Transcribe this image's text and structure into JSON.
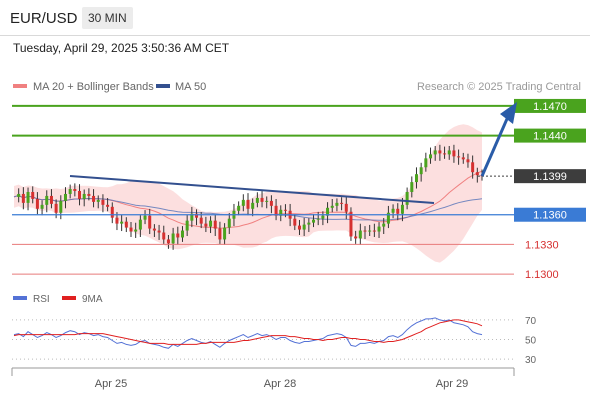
{
  "header": {
    "symbol": "EUR/USD",
    "timeframe": "30 MIN"
  },
  "timestamp": "Tuesday, April 29, 2025 3:50:36 AM CET",
  "legend": {
    "ma20_label": "MA 20 + Bollinger Bands",
    "ma50_label": "MA 50",
    "credit": "Research © 2025 Trading Central"
  },
  "rsi_legend": {
    "rsi_label": "RSI",
    "ma9_label": "9MA"
  },
  "colors": {
    "target": "#4aa31e",
    "current": "#3d3d3d",
    "pivot": "#3a7bd5",
    "support": "#e87a7a",
    "trendline": "#33508f",
    "bollinger": "#fbd4d4",
    "ma20": "#f08080",
    "ma50": "#5472b8",
    "rsi": "#5472d6",
    "rsi_ma": "#e02020",
    "arrow": "#2a5ca8"
  },
  "chart_data": [
    {
      "type": "candlestick",
      "levels": [
        {
          "label": "1.1470",
          "value": 1.147,
          "kind": "target"
        },
        {
          "label": "1.1440",
          "value": 1.144,
          "kind": "target"
        },
        {
          "label": "1.1399",
          "value": 1.1399,
          "kind": "current"
        },
        {
          "label": "1.1360",
          "value": 1.136,
          "kind": "pivot"
        },
        {
          "label": "1.1330",
          "value": 1.133,
          "kind": "support"
        },
        {
          "label": "1.1300",
          "value": 1.13,
          "kind": "support"
        }
      ],
      "x_ticks": [
        "Apr 25",
        "Apr 28",
        "Apr 29"
      ],
      "ylim": [
        1.1294,
        1.1476
      ],
      "series": [
        {
          "name": "MA 20 + Bollinger Bands"
        },
        {
          "name": "MA 50"
        }
      ],
      "close_prices": [
        1.1378,
        1.1381,
        1.1372,
        1.1383,
        1.1376,
        1.1366,
        1.137,
        1.1379,
        1.1371,
        1.1362,
        1.1374,
        1.1381,
        1.1386,
        1.1384,
        1.1376,
        1.1381,
        1.1379,
        1.1373,
        1.1375,
        1.137,
        1.1368,
        1.1357,
        1.1351,
        1.1353,
        1.1347,
        1.1343,
        1.1345,
        1.1355,
        1.1359,
        1.1346,
        1.1344,
        1.1342,
        1.1335,
        1.1331,
        1.1341,
        1.1337,
        1.1344,
        1.1354,
        1.1361,
        1.1357,
        1.1351,
        1.1348,
        1.1354,
        1.1346,
        1.1335,
        1.1347,
        1.1356,
        1.1364,
        1.1369,
        1.1375,
        1.1366,
        1.1372,
        1.1377,
        1.1373,
        1.1374,
        1.1369,
        1.1359,
        1.1365,
        1.1364,
        1.1356,
        1.1349,
        1.1345,
        1.135,
        1.1352,
        1.1355,
        1.1356,
        1.1359,
        1.1367,
        1.1369,
        1.1372,
        1.1371,
        1.1363,
        1.1338,
        1.1336,
        1.1344,
        1.1343,
        1.1344,
        1.1343,
        1.1348,
        1.1351,
        1.1362,
        1.1366,
        1.1361,
        1.137,
        1.1383,
        1.1393,
        1.1401,
        1.1408,
        1.1417,
        1.1421,
        1.1425,
        1.1422,
        1.1421,
        1.1425,
        1.1419,
        1.1418,
        1.1416,
        1.1413,
        1.1403,
        1.14,
        1.1399
      ]
    },
    {
      "type": "line",
      "ylim": [
        25,
        75
      ],
      "y_ticks": [
        "70",
        "50",
        "30"
      ],
      "series": [
        {
          "name": "RSI",
          "values": [
            55,
            56,
            53,
            58,
            55,
            52,
            54,
            57,
            55,
            52,
            54,
            57,
            59,
            58,
            55,
            57,
            56,
            54,
            55,
            53,
            52,
            49,
            46,
            47,
            45,
            44,
            45,
            48,
            49,
            46,
            45,
            44,
            42,
            41,
            45,
            43,
            46,
            49,
            51,
            49,
            47,
            46,
            48,
            45,
            42,
            46,
            49,
            51,
            53,
            55,
            52,
            54,
            56,
            54,
            55,
            53,
            50,
            52,
            52,
            49,
            47,
            46,
            48,
            48,
            49,
            50,
            51,
            54,
            55,
            56,
            55,
            52,
            44,
            43,
            46,
            46,
            47,
            46,
            48,
            49,
            53,
            54,
            52,
            55,
            60,
            64,
            67,
            69,
            71,
            71,
            72,
            70,
            69,
            70,
            67,
            66,
            65,
            63,
            58,
            56,
            55
          ]
        },
        {
          "name": "9MA",
          "values": [
            54,
            55,
            55,
            55,
            55,
            55,
            55,
            55,
            55,
            55,
            55,
            55,
            55,
            55,
            56,
            56,
            56,
            56,
            56,
            56,
            55,
            54,
            53,
            52,
            51,
            50,
            49,
            48,
            47,
            46,
            46,
            46,
            46,
            45,
            45,
            45,
            45,
            45,
            45,
            45,
            46,
            46,
            47,
            47,
            47,
            47,
            47,
            47,
            48,
            49,
            49,
            50,
            51,
            52,
            53,
            54,
            54,
            54,
            54,
            53,
            53,
            52,
            51,
            51,
            50,
            50,
            49,
            50,
            50,
            51,
            52,
            52,
            51,
            51,
            50,
            50,
            49,
            48,
            48,
            47,
            48,
            48,
            49,
            50,
            52,
            54,
            56,
            58,
            61,
            63,
            65,
            67,
            68,
            69,
            70,
            70,
            69,
            68,
            67,
            66,
            64
          ]
        }
      ]
    }
  ]
}
